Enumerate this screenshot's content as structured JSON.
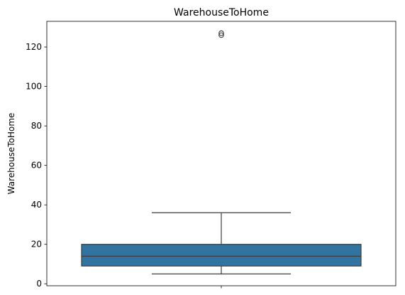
{
  "chart_data": {
    "type": "box",
    "title": "WarehouseToHome",
    "xlabel": "",
    "ylabel": "WarehouseToHome",
    "ylim": [
      -1,
      133
    ],
    "yticks": [
      0,
      20,
      40,
      60,
      80,
      100,
      120
    ],
    "ytick_labels": [
      "0",
      "20",
      "40",
      "60",
      "80",
      "100",
      "120"
    ],
    "grid": false,
    "box": {
      "whisker_low": 5,
      "q1": 9,
      "median": 14,
      "q3": 20,
      "whisker_high": 36,
      "outliers": [
        126,
        127
      ]
    },
    "colors": {
      "box_fill": "#3274a1",
      "lines": "#3d3d3d"
    }
  }
}
